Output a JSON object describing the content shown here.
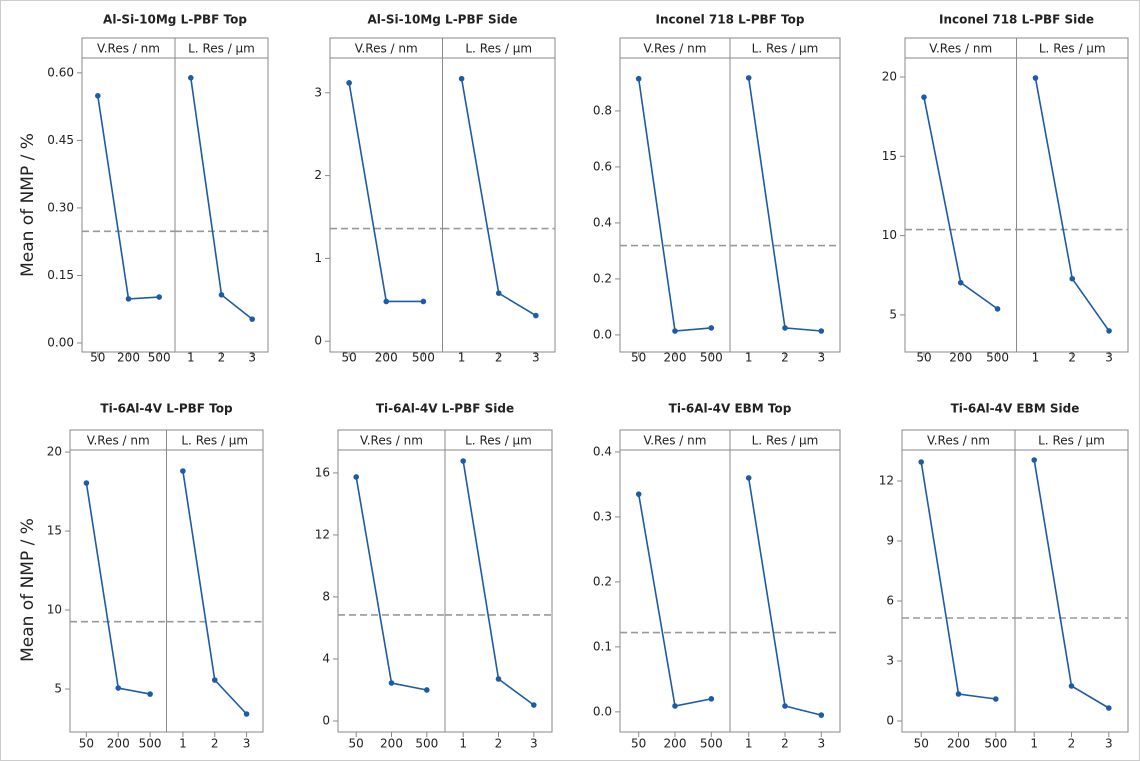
{
  "chart_data": [
    {
      "type": "line",
      "title": "Al-Si-10Mg L-PBF Top",
      "ylabel": "Mean of NMP / %",
      "color": "#1c5ba6",
      "mean_color": "#999999",
      "facets": [
        {
          "label": "V.Res / nm",
          "categories": [
            "50",
            "200",
            "500"
          ],
          "values": [
            0.549,
            0.098,
            0.102
          ]
        },
        {
          "label": "L. Res / μm",
          "categories": [
            "1",
            "2",
            "3"
          ],
          "values": [
            0.589,
            0.107,
            0.053
          ]
        }
      ],
      "mean": 0.248,
      "ylim": [
        -0.02,
        0.633
      ],
      "yticks": [
        {
          "value": 0,
          "label": "0.00"
        },
        0.15,
        {
          "value": 0.3,
          "label": "0.30"
        },
        0.45,
        {
          "value": 0.6,
          "label": "0.60"
        }
      ]
    },
    {
      "type": "line",
      "title": "Al-Si-10Mg L-PBF Side",
      "color": "#1c5ba6",
      "mean_color": "#999999",
      "facets": [
        {
          "label": "V.Res / nm",
          "categories": [
            "50",
            "200",
            "500"
          ],
          "values": [
            3.12,
            0.48,
            0.48
          ]
        },
        {
          "label": "L. Res / μm",
          "categories": [
            "1",
            "2",
            "3"
          ],
          "values": [
            3.17,
            0.58,
            0.31
          ]
        }
      ],
      "mean": 1.36,
      "ylim": [
        -0.13,
        3.42
      ],
      "yticks": [
        0,
        1,
        2,
        3
      ]
    },
    {
      "type": "line",
      "title": "Inconel 718 L-PBF Top",
      "color": "#1c5ba6",
      "mean_color": "#999999",
      "facets": [
        {
          "label": "V.Res / nm",
          "categories": [
            "50",
            "200",
            "500"
          ],
          "values": [
            0.915,
            0.014,
            0.025
          ]
        },
        {
          "label": "L. Res / μm",
          "categories": [
            "1",
            "2",
            "3"
          ],
          "values": [
            0.918,
            0.025,
            0.014
          ]
        }
      ],
      "mean": 0.319,
      "ylim": [
        -0.061,
        0.989
      ],
      "yticks": [
        {
          "value": 0,
          "label": "0.0"
        },
        0.2,
        0.4,
        0.6,
        0.8
      ]
    },
    {
      "type": "line",
      "title": "Inconel 718 L-PBF Side",
      "color": "#1c5ba6",
      "mean_color": "#999999",
      "facets": [
        {
          "label": "V.Res / nm",
          "categories": [
            "50",
            "200",
            "500"
          ],
          "values": [
            18.73,
            7.03,
            5.38
          ]
        },
        {
          "label": "L. Res / μm",
          "categories": [
            "1",
            "2",
            "3"
          ],
          "values": [
            19.94,
            7.28,
            3.99
          ]
        }
      ],
      "mean": 10.38,
      "ylim": [
        2.66,
        21.2
      ],
      "yticks": [
        5,
        10,
        15,
        20
      ]
    },
    {
      "type": "line",
      "title": "Ti-6Al-4V L-PBF Top",
      "ylabel": "Mean of NMP / %",
      "color": "#1c5ba6",
      "mean_color": "#999999",
      "facets": [
        {
          "label": "V.Res / nm",
          "categories": [
            "50",
            "200",
            "500"
          ],
          "values": [
            18.04,
            5.06,
            4.68
          ]
        },
        {
          "label": "L. Res / μm",
          "categories": [
            "1",
            "2",
            "3"
          ],
          "values": [
            18.8,
            5.57,
            3.42
          ]
        }
      ],
      "mean": 9.26,
      "ylim": [
        2.28,
        20.13
      ],
      "yticks": [
        5,
        10,
        15,
        20
      ]
    },
    {
      "type": "line",
      "title": "Ti-6Al-4V L-PBF Side",
      "color": "#1c5ba6",
      "mean_color": "#999999",
      "facets": [
        {
          "label": "V.Res / nm",
          "categories": [
            "50",
            "200",
            "500"
          ],
          "values": [
            15.74,
            2.45,
            2.0
          ]
        },
        {
          "label": "L. Res / μm",
          "categories": [
            "1",
            "2",
            "3"
          ],
          "values": [
            16.77,
            2.71,
            1.03
          ]
        }
      ],
      "mean": 6.84,
      "ylim": [
        -0.71,
        17.48
      ],
      "yticks": [
        0,
        4,
        8,
        12,
        16
      ]
    },
    {
      "type": "line",
      "title": "Ti-6Al-4V EBM Top",
      "color": "#1c5ba6",
      "mean_color": "#999999",
      "facets": [
        {
          "label": "V.Res / nm",
          "categories": [
            "50",
            "200",
            "500"
          ],
          "values": [
            0.335,
            0.009,
            0.02
          ]
        },
        {
          "label": "L. Res / μm",
          "categories": [
            "1",
            "2",
            "3"
          ],
          "values": [
            0.36,
            0.009,
            -0.005
          ]
        }
      ],
      "mean": 0.122,
      "ylim": [
        -0.031,
        0.403
      ],
      "yticks": [
        {
          "value": 0,
          "label": "0.0"
        },
        0.1,
        0.2,
        0.3,
        0.4
      ]
    },
    {
      "type": "line",
      "title": "Ti-6Al-4V EBM Side",
      "color": "#1c5ba6",
      "mean_color": "#999999",
      "facets": [
        {
          "label": "V.Res / nm",
          "categories": [
            "50",
            "200",
            "500"
          ],
          "values": [
            12.95,
            1.35,
            1.1
          ]
        },
        {
          "label": "L. Res / μm",
          "categories": [
            "1",
            "2",
            "3"
          ],
          "values": [
            13.05,
            1.75,
            0.65
          ]
        }
      ],
      "mean": 5.15,
      "ylim": [
        -0.55,
        13.55
      ],
      "yticks": [
        0,
        3,
        6,
        9,
        12
      ]
    }
  ]
}
